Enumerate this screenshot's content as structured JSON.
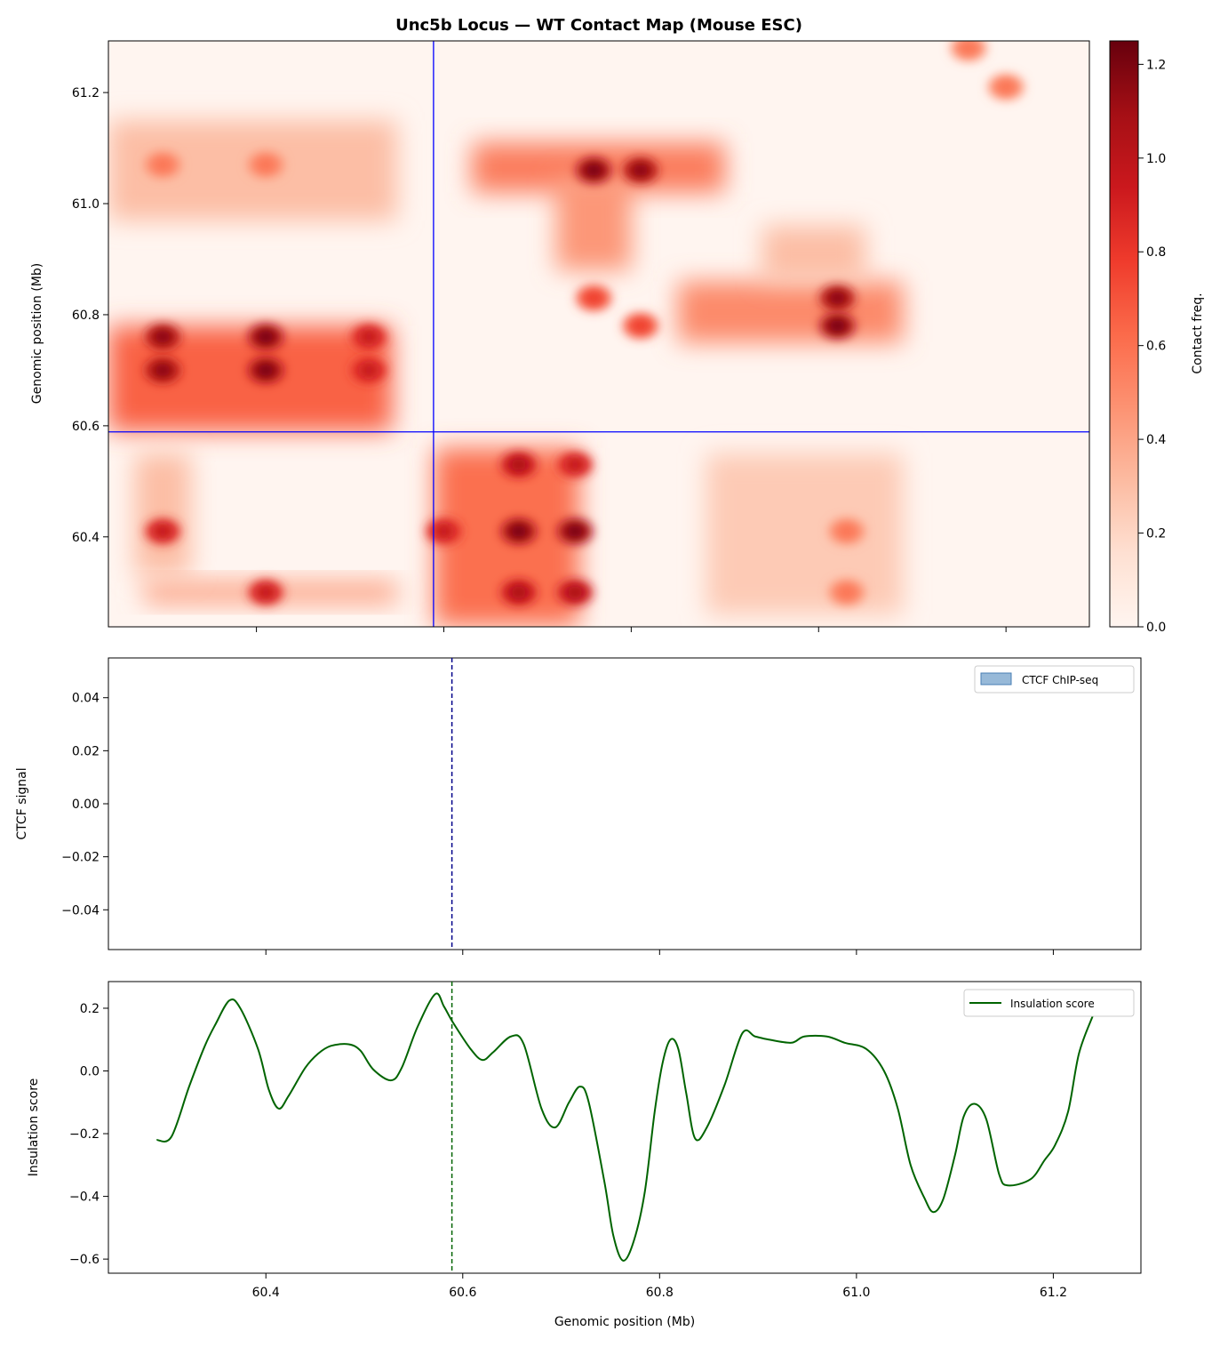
{
  "chart_data": [
    {
      "type": "heatmap",
      "title": "Unc5b Locus — WT Contact Map (Mouse ESC)",
      "xlabel": "",
      "ylabel": "Genomic position (Mb)",
      "xlim": [
        60.242,
        61.289
      ],
      "ylim": [
        60.238,
        61.293
      ],
      "xticks": [
        60.4,
        60.6,
        60.8,
        61.0,
        61.2
      ],
      "yticks": [
        "60.4",
        "60.6",
        "60.8",
        "61.0",
        "61.2"
      ],
      "ytick_values": [
        60.4,
        60.6,
        60.8,
        61.0,
        61.2
      ],
      "colormap": "Reds",
      "colorbar": {
        "label": "Contact freq.",
        "range": [
          0,
          1.25
        ],
        "ticks": [
          "0.0",
          "0.2",
          "0.4",
          "0.6",
          "0.8",
          "1.0",
          "1.2"
        ],
        "tick_values": [
          0,
          0.2,
          0.4,
          0.6,
          0.8,
          1.0,
          1.2
        ]
      },
      "crosshair": {
        "x": 60.589,
        "y": 60.589,
        "color": "#0000ff"
      },
      "domains": [
        {
          "x": [
            60.242,
            60.545
          ],
          "y": [
            60.59,
            60.78
          ],
          "value": 0.65
        },
        {
          "x": [
            60.242,
            60.55
          ],
          "y": [
            60.97,
            61.15
          ],
          "value": 0.3
        },
        {
          "x": [
            60.59,
            60.745
          ],
          "y": [
            60.24,
            60.56
          ],
          "value": 0.6
        },
        {
          "x": [
            60.63,
            60.9
          ],
          "y": [
            61.02,
            61.11
          ],
          "value": 0.55
        },
        {
          "x": [
            60.85,
            61.09
          ],
          "y": [
            60.75,
            60.86
          ],
          "value": 0.5
        },
        {
          "x": [
            60.94,
            61.05
          ],
          "y": [
            60.86,
            60.96
          ],
          "value": 0.3
        },
        {
          "x": [
            60.28,
            60.55
          ],
          "y": [
            60.28,
            60.32
          ],
          "value": 0.4
        },
        {
          "x": [
            60.88,
            61.09
          ],
          "y": [
            60.26,
            60.55
          ],
          "value": 0.25
        },
        {
          "x": [
            60.72,
            60.8
          ],
          "y": [
            60.88,
            61.05
          ],
          "value": 0.45
        },
        {
          "x": [
            60.27,
            60.33
          ],
          "y": [
            60.33,
            60.55
          ],
          "value": 0.3
        }
      ],
      "peaks": [
        {
          "x": 60.3,
          "y": 60.76,
          "value": 1.2
        },
        {
          "x": 60.41,
          "y": 60.76,
          "value": 1.25
        },
        {
          "x": 60.52,
          "y": 60.76,
          "value": 1.0
        },
        {
          "x": 60.3,
          "y": 60.7,
          "value": 1.2
        },
        {
          "x": 60.41,
          "y": 60.7,
          "value": 1.25
        },
        {
          "x": 60.52,
          "y": 60.7,
          "value": 1.0
        },
        {
          "x": 60.68,
          "y": 60.53,
          "value": 1.1
        },
        {
          "x": 60.74,
          "y": 60.53,
          "value": 1.0
        },
        {
          "x": 60.6,
          "y": 60.41,
          "value": 1.0
        },
        {
          "x": 60.68,
          "y": 60.41,
          "value": 1.25
        },
        {
          "x": 60.74,
          "y": 60.41,
          "value": 1.25
        },
        {
          "x": 60.68,
          "y": 60.3,
          "value": 1.1
        },
        {
          "x": 60.74,
          "y": 60.3,
          "value": 1.1
        },
        {
          "x": 60.76,
          "y": 61.06,
          "value": 1.25
        },
        {
          "x": 60.81,
          "y": 61.06,
          "value": 1.2
        },
        {
          "x": 61.02,
          "y": 60.83,
          "value": 1.2
        },
        {
          "x": 61.02,
          "y": 60.78,
          "value": 1.25
        },
        {
          "x": 60.3,
          "y": 60.41,
          "value": 1.0
        },
        {
          "x": 60.41,
          "y": 60.3,
          "value": 1.0
        },
        {
          "x": 60.3,
          "y": 61.07,
          "value": 0.6
        },
        {
          "x": 60.41,
          "y": 61.07,
          "value": 0.6
        },
        {
          "x": 61.2,
          "y": 61.21,
          "value": 0.6
        },
        {
          "x": 61.16,
          "y": 61.28,
          "value": 0.6
        },
        {
          "x": 60.76,
          "y": 60.83,
          "value": 0.8
        },
        {
          "x": 60.81,
          "y": 60.78,
          "value": 0.8
        },
        {
          "x": 61.03,
          "y": 60.41,
          "value": 0.6
        },
        {
          "x": 61.03,
          "y": 60.3,
          "value": 0.6
        }
      ]
    },
    {
      "type": "line",
      "ylabel": "CTCF signal",
      "xlim": [
        60.24,
        61.289
      ],
      "ylim": [
        -0.055,
        0.055
      ],
      "yticks": [
        "0.04",
        "0.02",
        "0.00",
        "−0.02",
        "−0.04"
      ],
      "ytick_values": [
        0.04,
        0.02,
        0.0,
        -0.02,
        -0.04
      ],
      "legend": {
        "label": "CTCF ChIP-seq",
        "placement": "upper right",
        "color": "#6b9bc8"
      },
      "marker_line": {
        "x": 60.589,
        "color": "#00008b",
        "style": "dashed"
      },
      "values": []
    },
    {
      "type": "line",
      "xlabel": "Genomic position (Mb)",
      "ylabel": "Insulation score",
      "xlim": [
        60.24,
        61.289
      ],
      "ylim": [
        -0.645,
        0.285
      ],
      "xticks": [
        "60.4",
        "60.6",
        "60.8",
        "61.0",
        "61.2"
      ],
      "xtick_values": [
        60.4,
        60.6,
        60.8,
        61.0,
        61.2
      ],
      "yticks": [
        "0.2",
        "0.0",
        "−0.2",
        "−0.4",
        "−0.6"
      ],
      "ytick_values": [
        0.2,
        0.0,
        -0.2,
        -0.4,
        -0.6
      ],
      "legend": {
        "label": "Insulation score",
        "placement": "upper right"
      },
      "color": "#006400",
      "marker_line": {
        "x": 60.589,
        "color": "#006400",
        "style": "dashed"
      },
      "x": [
        60.289,
        60.304,
        60.322,
        60.338,
        60.349,
        60.363,
        60.374,
        60.392,
        60.403,
        60.413,
        60.423,
        60.44,
        60.453,
        60.466,
        60.484,
        60.496,
        60.509,
        60.527,
        60.538,
        60.554,
        60.572,
        60.581,
        60.59,
        60.608,
        60.62,
        60.631,
        60.649,
        60.662,
        60.68,
        60.694,
        60.708,
        60.719,
        60.728,
        60.744,
        60.753,
        60.763,
        60.774,
        60.785,
        60.795,
        60.803,
        60.811,
        60.819,
        60.827,
        60.836,
        60.848,
        60.866,
        60.884,
        60.897,
        60.911,
        60.934,
        60.947,
        60.97,
        60.988,
        61.01,
        61.028,
        61.042,
        61.055,
        61.069,
        61.078,
        61.088,
        61.1,
        61.109,
        61.12,
        61.132,
        61.145,
        61.154,
        61.177,
        61.191,
        61.202,
        61.215,
        61.226,
        61.24
      ],
      "y": [
        -0.22,
        -0.21,
        -0.05,
        0.08,
        0.15,
        0.225,
        0.2,
        0.07,
        -0.06,
        -0.12,
        -0.08,
        0.01,
        0.055,
        0.08,
        0.085,
        0.065,
        0.005,
        -0.03,
        0.01,
        0.14,
        0.245,
        0.205,
        0.155,
        0.07,
        0.035,
        0.06,
        0.11,
        0.085,
        -0.12,
        -0.18,
        -0.1,
        -0.05,
        -0.1,
        -0.355,
        -0.525,
        -0.605,
        -0.54,
        -0.385,
        -0.13,
        0.025,
        0.1,
        0.07,
        -0.07,
        -0.215,
        -0.18,
        -0.045,
        0.12,
        0.11,
        0.1,
        0.09,
        0.11,
        0.11,
        0.09,
        0.07,
        0.0,
        -0.12,
        -0.3,
        -0.405,
        -0.45,
        -0.41,
        -0.27,
        -0.145,
        -0.105,
        -0.155,
        -0.33,
        -0.365,
        -0.345,
        -0.285,
        -0.235,
        -0.13,
        0.055,
        0.175
      ]
    }
  ]
}
